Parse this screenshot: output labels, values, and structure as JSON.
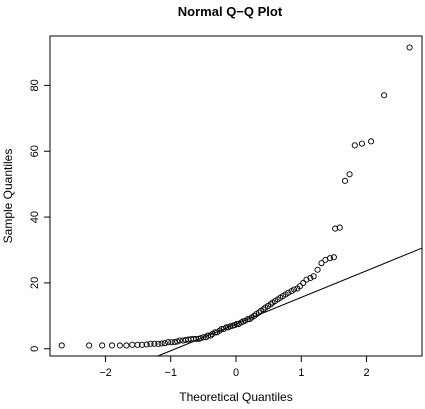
{
  "chart_data": {
    "type": "scatter",
    "title": "Normal Q−Q Plot",
    "xlabel": "Theoretical Quantiles",
    "ylabel": "Sample Quantiles",
    "xlim": [
      -2.85,
      2.85
    ],
    "ylim": [
      -2.2,
      95.0
    ],
    "xticks": [
      -2,
      -1,
      0,
      1,
      2
    ],
    "xtick_labels": [
      "−2",
      "−1",
      "0",
      "1",
      "2"
    ],
    "yticks": [
      0,
      20,
      40,
      60,
      80
    ],
    "ytick_labels": [
      "0",
      "20",
      "40",
      "60",
      "80"
    ],
    "grid": false,
    "marker": "open-circle",
    "reference_line": {
      "intercept": 7.5,
      "slope": 8.1
    },
    "points": [
      [
        -2.67,
        1.0
      ],
      [
        -2.25,
        1.0
      ],
      [
        -2.05,
        1.0
      ],
      [
        -1.9,
        1.0
      ],
      [
        -1.78,
        1.0
      ],
      [
        -1.68,
        1.0
      ],
      [
        -1.59,
        1.2
      ],
      [
        -1.51,
        1.2
      ],
      [
        -1.44,
        1.2
      ],
      [
        -1.37,
        1.3
      ],
      [
        -1.31,
        1.5
      ],
      [
        -1.25,
        1.5
      ],
      [
        -1.19,
        1.5
      ],
      [
        -1.14,
        1.6
      ],
      [
        -1.09,
        1.7
      ],
      [
        -1.04,
        2.0
      ],
      [
        -0.99,
        2.0
      ],
      [
        -0.94,
        2.0
      ],
      [
        -0.9,
        2.2
      ],
      [
        -0.86,
        2.5
      ],
      [
        -0.81,
        2.5
      ],
      [
        -0.77,
        2.7
      ],
      [
        -0.73,
        2.8
      ],
      [
        -0.69,
        2.9
      ],
      [
        -0.65,
        3.0
      ],
      [
        -0.61,
        3.0
      ],
      [
        -0.57,
        3.0
      ],
      [
        -0.54,
        3.2
      ],
      [
        -0.5,
        3.5
      ],
      [
        -0.46,
        3.5
      ],
      [
        -0.43,
        4.0
      ],
      [
        -0.39,
        4.0
      ],
      [
        -0.36,
        4.5
      ],
      [
        -0.32,
        5.0
      ],
      [
        -0.29,
        5.0
      ],
      [
        -0.25,
        5.5
      ],
      [
        -0.22,
        6.0
      ],
      [
        -0.19,
        6.0
      ],
      [
        -0.15,
        6.5
      ],
      [
        -0.12,
        6.5
      ],
      [
        -0.09,
        6.8
      ],
      [
        -0.05,
        7.0
      ],
      [
        -0.02,
        7.2
      ],
      [
        0.01,
        7.5
      ],
      [
        0.04,
        7.5
      ],
      [
        0.08,
        8.0
      ],
      [
        0.11,
        8.3
      ],
      [
        0.14,
        8.5
      ],
      [
        0.18,
        9.0
      ],
      [
        0.21,
        9.0
      ],
      [
        0.24,
        9.5
      ],
      [
        0.28,
        10.0
      ],
      [
        0.31,
        10.5
      ],
      [
        0.35,
        11.0
      ],
      [
        0.38,
        11.5
      ],
      [
        0.42,
        12.0
      ],
      [
        0.45,
        12.5
      ],
      [
        0.49,
        13.0
      ],
      [
        0.53,
        13.5
      ],
      [
        0.56,
        14.0
      ],
      [
        0.6,
        14.5
      ],
      [
        0.64,
        15.0
      ],
      [
        0.68,
        15.5
      ],
      [
        0.72,
        16.0
      ],
      [
        0.76,
        16.5
      ],
      [
        0.8,
        17.0
      ],
      [
        0.85,
        17.5
      ],
      [
        0.89,
        18.0
      ],
      [
        0.94,
        18.3
      ],
      [
        0.98,
        19.0
      ],
      [
        1.03,
        20.0
      ],
      [
        1.08,
        21.0
      ],
      [
        1.14,
        21.5
      ],
      [
        1.19,
        22.0
      ],
      [
        1.25,
        24.0
      ],
      [
        1.31,
        26.0
      ],
      [
        1.37,
        27.0
      ],
      [
        1.44,
        27.5
      ],
      [
        1.5,
        27.8
      ],
      [
        1.52,
        36.5
      ],
      [
        1.59,
        36.8
      ],
      [
        1.67,
        51.0
      ],
      [
        1.74,
        53.0
      ],
      [
        1.82,
        61.8
      ],
      [
        1.93,
        62.3
      ],
      [
        2.07,
        63.0
      ],
      [
        2.27,
        77.0
      ],
      [
        2.66,
        91.5
      ]
    ]
  }
}
